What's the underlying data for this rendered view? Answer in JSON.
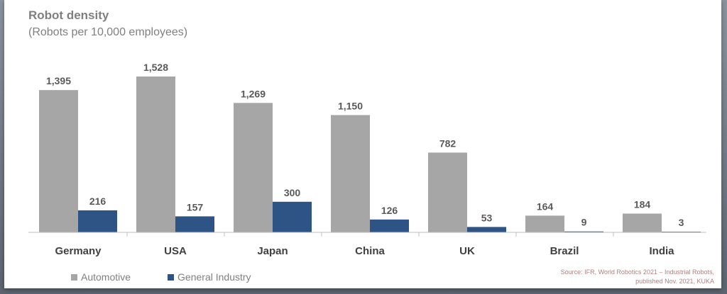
{
  "title": "Robot density",
  "subtitle": "(Robots per 10,000 employees)",
  "source_line1": "Source: IFR, World Robotics 2021 – Industrial Robots,",
  "source_line2": "published Nov. 2021, KUKA",
  "colors": {
    "automotive": "#a6a6a6",
    "general": "#2e5486",
    "axis": "#bfbfbf"
  },
  "chart_data": {
    "type": "bar",
    "title": "Robot density",
    "subtitle": "(Robots per 10,000 employees)",
    "categories": [
      "Germany",
      "USA",
      "Japan",
      "China",
      "UK",
      "Brazil",
      "India"
    ],
    "series": [
      {
        "name": "Automotive",
        "values": [
          1395,
          1528,
          1269,
          1150,
          782,
          164,
          184
        ]
      },
      {
        "name": "General Industry",
        "values": [
          216,
          157,
          300,
          126,
          53,
          9,
          3
        ]
      }
    ],
    "value_labels": {
      "Automotive": [
        "1,395",
        "1,528",
        "1,269",
        "1,150",
        "782",
        "164",
        "184"
      ],
      "General Industry": [
        "216",
        "157",
        "300",
        "126",
        "53",
        "9",
        "3"
      ]
    },
    "ylim": [
      0,
      1528
    ],
    "grid": false,
    "legend_position": "bottom-left"
  }
}
